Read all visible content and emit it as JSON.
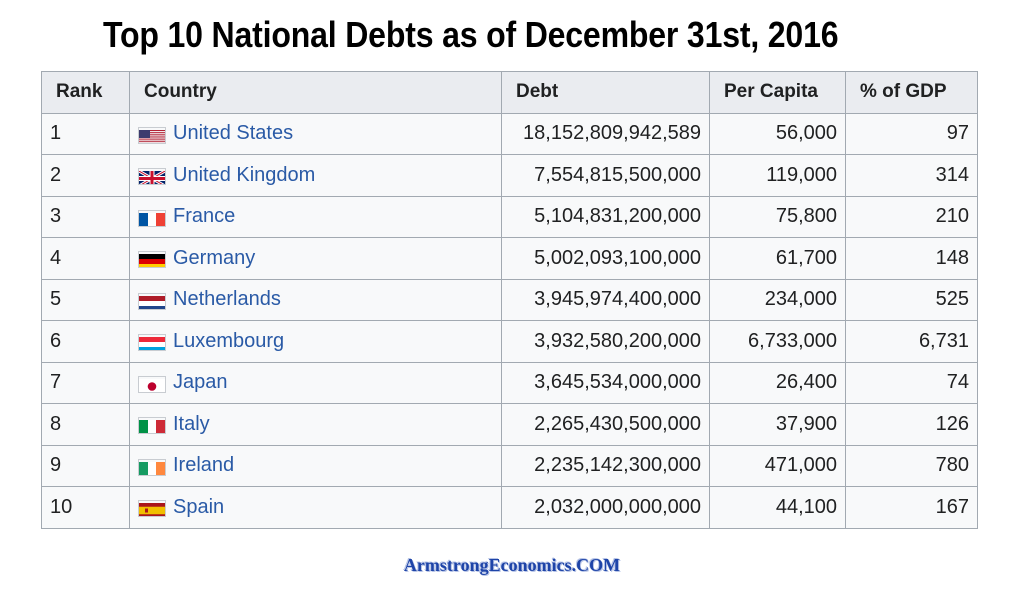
{
  "title": "Top 10 National Debts as of December 31st, 2016",
  "table": {
    "headers": {
      "rank": "Rank",
      "country": "Country",
      "debt": "Debt",
      "per_capita": "Per Capita",
      "gdp": "% of GDP"
    },
    "rows": [
      {
        "rank": "1",
        "country": "United States",
        "flag": "flag-usa-icon",
        "debt": "18,152,809,942,589",
        "per_capita": "56,000",
        "gdp": "97"
      },
      {
        "rank": "2",
        "country": "United Kingdom",
        "flag": "flag-uk-icon",
        "debt": "7,554,815,500,000",
        "per_capita": "119,000",
        "gdp": "314"
      },
      {
        "rank": "3",
        "country": "France",
        "flag": "flag-france-icon",
        "debt": "5,104,831,200,000",
        "per_capita": "75,800",
        "gdp": "210"
      },
      {
        "rank": "4",
        "country": "Germany",
        "flag": "flag-germany-icon",
        "debt": "5,002,093,100,000",
        "per_capita": "61,700",
        "gdp": "148"
      },
      {
        "rank": "5",
        "country": "Netherlands",
        "flag": "flag-netherlands-icon",
        "debt": "3,945,974,400,000",
        "per_capita": "234,000",
        "gdp": "525"
      },
      {
        "rank": "6",
        "country": "Luxembourg",
        "flag": "flag-luxembourg-icon",
        "debt": "3,932,580,200,000",
        "per_capita": "6,733,000",
        "gdp": "6,731"
      },
      {
        "rank": "7",
        "country": "Japan",
        "flag": "flag-japan-icon",
        "debt": "3,645,534,000,000",
        "per_capita": "26,400",
        "gdp": "74"
      },
      {
        "rank": "8",
        "country": "Italy",
        "flag": "flag-italy-icon",
        "debt": "2,265,430,500,000",
        "per_capita": "37,900",
        "gdp": "126"
      },
      {
        "rank": "9",
        "country": "Ireland",
        "flag": "flag-ireland-icon",
        "debt": "2,235,142,300,000",
        "per_capita": "471,000",
        "gdp": "780"
      },
      {
        "rank": "10",
        "country": "Spain",
        "flag": "flag-spain-icon",
        "debt": "2,032,000,000,000",
        "per_capita": "44,100",
        "gdp": "167"
      }
    ]
  },
  "watermark": "ArmstrongEconomics.COM",
  "colors": {
    "link": "#2a5aa6",
    "header_bg": "#eaecf0",
    "cell_bg": "#f8f9fa",
    "border": "#a2a9b1",
    "watermark": "#1e44a8"
  }
}
